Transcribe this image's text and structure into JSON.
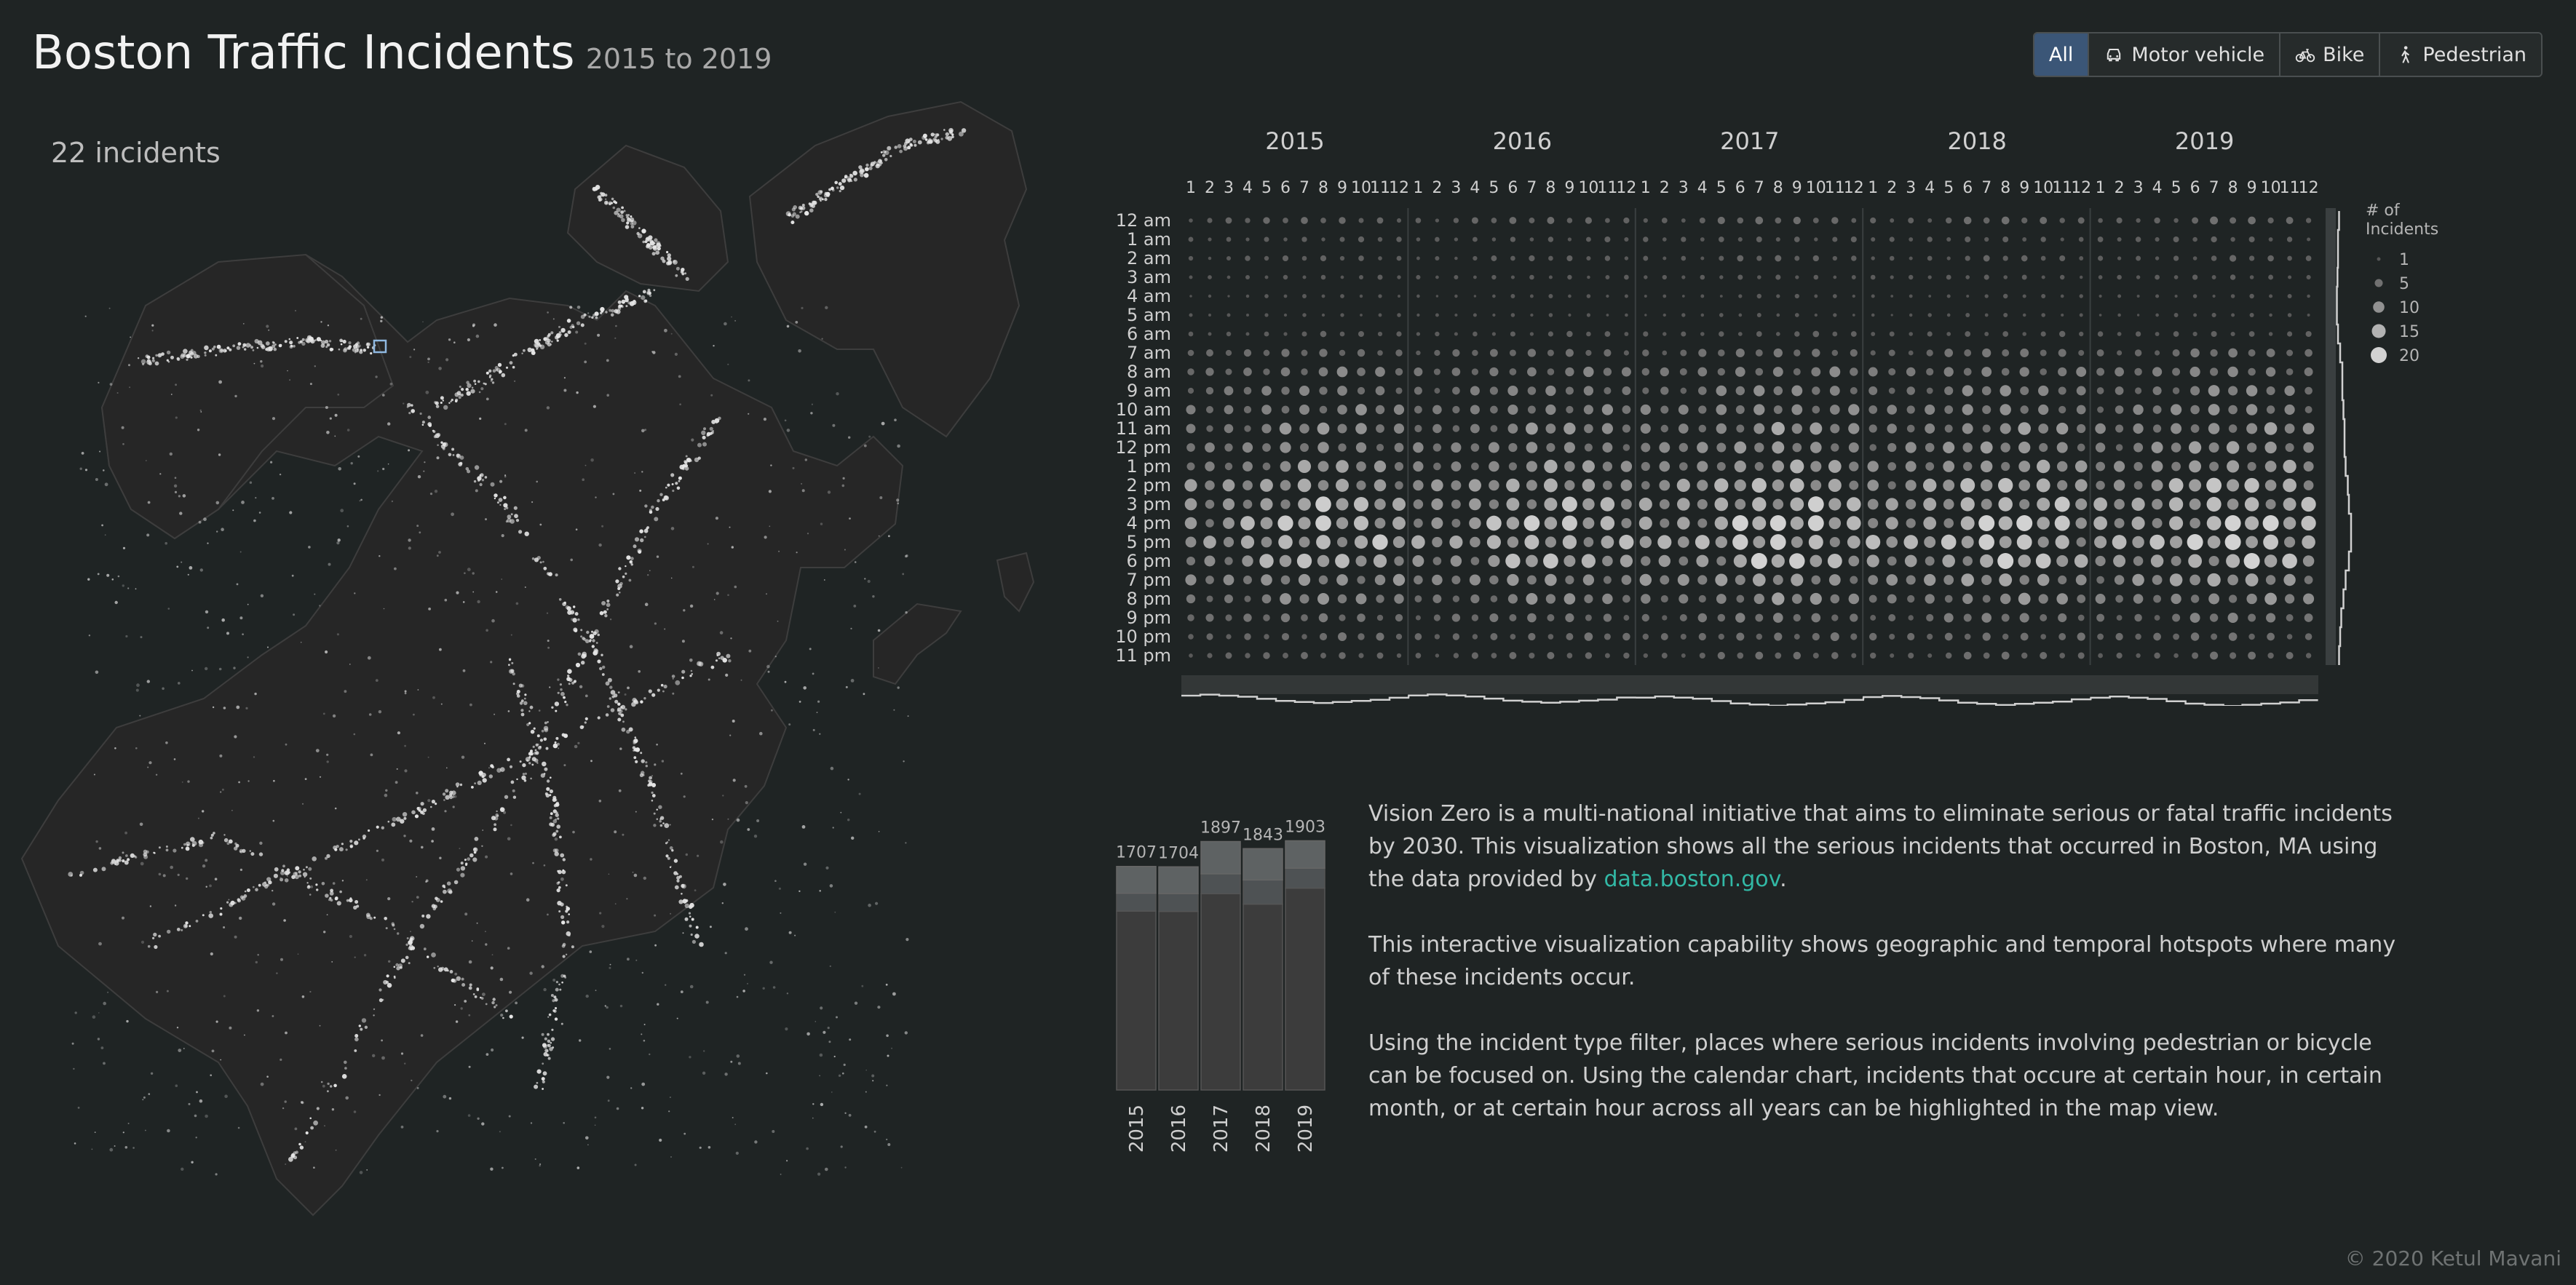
{
  "header": {
    "title": "Boston Traffic Incidents",
    "subtitle": "2015 to 2019"
  },
  "filters": [
    {
      "label": "All",
      "icon": "none",
      "active": true
    },
    {
      "label": "Motor vehicle",
      "icon": "car-icon",
      "active": false
    },
    {
      "label": "Bike",
      "icon": "bike-icon",
      "active": false
    },
    {
      "label": "Pedestrian",
      "icon": "pedestrian-icon",
      "active": false
    }
  ],
  "map": {
    "incident_count_label": "22 incidents",
    "background_color": "#1f2424",
    "land_color": "#262626",
    "point_color": "#e6e6e6",
    "selection_color": "#8fb8e0"
  },
  "description": {
    "p1_text": "Vision Zero is a multi-national initiative that aims to eliminate serious or fatal traffic incidents by 2030. This visualization shows all the serious incidents that occurred in Boston, MA using the data provided by ",
    "p1_link": "data.boston.gov",
    "p1_end": ".",
    "p2": "This interactive visualization capability shows geographic and temporal hotspots where many of these incidents occur.",
    "p3": "Using the incident type filter, places where serious incidents involving pedestrian or bicycle can be focused on. Using the calendar chart, incidents that occure at certain hour, in certain month, or at certain hour across all years can be highlighted in the map view.",
    "link_color": "#32b8a5"
  },
  "footer": {
    "text": "© 2020 Ketul Mavani"
  },
  "chart_data": [
    {
      "type": "scatter",
      "name": "calendar",
      "years": [
        "2015",
        "2016",
        "2017",
        "2018",
        "2019"
      ],
      "months": [
        "1",
        "2",
        "3",
        "4",
        "5",
        "6",
        "7",
        "8",
        "9",
        "10",
        "11",
        "12"
      ],
      "hours": [
        "12 am",
        "1 am",
        "2 am",
        "3 am",
        "4 am",
        "5 am",
        "6 am",
        "7 am",
        "8 am",
        "9 am",
        "10 am",
        "11 am",
        "12 pm",
        "1 pm",
        "2 pm",
        "3 pm",
        "4 pm",
        "5 pm",
        "6 pm",
        "7 pm",
        "8 pm",
        "9 pm",
        "10 pm",
        "11 pm"
      ],
      "hour_profile": [
        3,
        2,
        2,
        1.5,
        1,
        1,
        2,
        4,
        6,
        6,
        7,
        8,
        8,
        9,
        11,
        12,
        14,
        14,
        12,
        9,
        7,
        5,
        4,
        3
      ],
      "month_profile": [
        0.8,
        0.75,
        0.8,
        0.85,
        0.95,
        1.05,
        1.1,
        1.15,
        1.1,
        1.05,
        1.0,
        0.9
      ],
      "year_profile": [
        0.96,
        0.95,
        1.07,
        1.04,
        1.08
      ],
      "legend": {
        "title_line1": "# of",
        "title_line2": "Incidents",
        "sizes": [
          1,
          5,
          10,
          15,
          20
        ],
        "labels": [
          "1",
          "5",
          "10",
          "15",
          "20"
        ]
      },
      "max_value": 20
    },
    {
      "type": "bar",
      "name": "yearly_totals",
      "categories": [
        "2015",
        "2016",
        "2017",
        "2018",
        "2019"
      ],
      "values": [
        1707,
        1704,
        1897,
        1843,
        1903
      ],
      "value_labels": [
        "1707",
        "1704",
        "1897",
        "1843",
        "1903"
      ],
      "stack_fractions": {
        "bottom": [
          0.8,
          0.8,
          0.79,
          0.77,
          0.81
        ],
        "middle": [
          0.08,
          0.08,
          0.08,
          0.1,
          0.08
        ],
        "top": [
          0.12,
          0.12,
          0.13,
          0.13,
          0.11
        ]
      },
      "ylim": [
        0,
        2000
      ]
    }
  ]
}
